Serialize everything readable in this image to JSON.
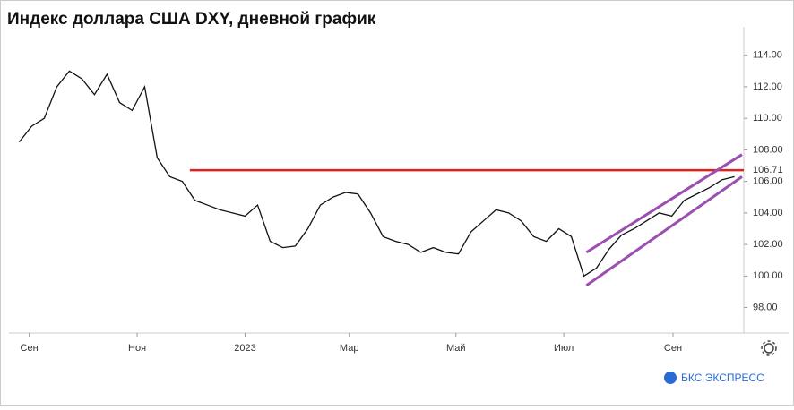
{
  "chart_data": {
    "type": "line",
    "title": "Индекс доллара США DXY, дневной график",
    "brand": "БКС ЭКСПРЕСС",
    "series": [
      {
        "name": "DXY",
        "color": "#111111",
        "values": [
          108.5,
          109.5,
          110.0,
          112.0,
          113.0,
          112.5,
          111.5,
          112.8,
          111.0,
          110.5,
          112.0,
          107.5,
          106.3,
          106.0,
          104.8,
          104.5,
          104.2,
          104.0,
          103.8,
          104.5,
          102.2,
          101.8,
          101.9,
          103.0,
          104.5,
          105.0,
          105.3,
          105.2,
          104.0,
          102.5,
          102.2,
          102.0,
          101.5,
          101.8,
          101.5,
          101.4,
          102.8,
          103.5,
          104.2,
          104.0,
          103.5,
          102.5,
          102.2,
          103.0,
          102.5,
          100.0,
          100.5,
          101.7,
          102.6,
          103.0,
          103.5,
          104.0,
          103.8,
          104.8,
          105.2,
          105.6,
          106.1,
          106.3
        ]
      }
    ],
    "xlim": [
      -0.1,
      57.6
    ],
    "xticks": [
      {
        "value": 0.8,
        "label": "Сен"
      },
      {
        "value": 9.4,
        "label": "Ноя"
      },
      {
        "value": 18,
        "label": "2023"
      },
      {
        "value": 26.3,
        "label": "Мар"
      },
      {
        "value": 34.8,
        "label": "Май"
      },
      {
        "value": 43.4,
        "label": "Июл"
      },
      {
        "value": 52.1,
        "label": "Сен"
      }
    ],
    "ylim": [
      96.5,
      115.8
    ],
    "yticks": [
      {
        "value": 98,
        "label": "98.00"
      },
      {
        "value": 100,
        "label": "100.00"
      },
      {
        "value": 102,
        "label": "102.00"
      },
      {
        "value": 104,
        "label": "104.00"
      },
      {
        "value": 106,
        "label": "106.00"
      },
      {
        "value": 108,
        "label": "108.00"
      },
      {
        "value": 110,
        "label": "110.00"
      },
      {
        "value": 112,
        "label": "112.00"
      },
      {
        "value": 114,
        "label": "114.00"
      }
    ],
    "resistance": {
      "value": 106.71,
      "label": "106.71",
      "from": 13.6,
      "color": "#e0201c"
    },
    "channel": {
      "color": "#9b4fb0",
      "lower": [
        [
          45.2,
          99.4
        ],
        [
          57.6,
          106.3
        ]
      ],
      "upper": [
        [
          45.2,
          101.5
        ],
        [
          57.6,
          107.7
        ]
      ]
    }
  }
}
